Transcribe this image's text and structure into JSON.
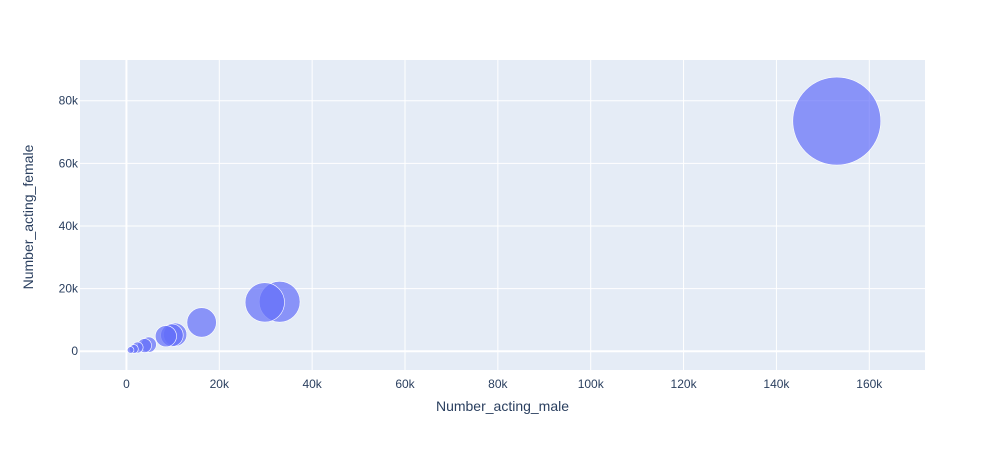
{
  "chart_data": {
    "type": "scatter",
    "subtype": "bubble",
    "xlabel": "Number_acting_male",
    "ylabel": "Number_acting_female",
    "xlim": [
      -10000,
      172000
    ],
    "ylim": [
      -6000,
      93000
    ],
    "x_ticks": [
      0,
      20000,
      40000,
      60000,
      80000,
      100000,
      120000,
      140000,
      160000
    ],
    "x_tick_labels": [
      "0",
      "20k",
      "40k",
      "60k",
      "80k",
      "100k",
      "120k",
      "140k",
      "160k"
    ],
    "y_ticks": [
      0,
      20000,
      40000,
      60000,
      80000
    ],
    "y_tick_labels": [
      "0",
      "20k",
      "40k",
      "60k",
      "80k"
    ],
    "grid": true,
    "legend": "none",
    "colors": {
      "marker": "#636efa",
      "plot_bg": "#e5ecf6",
      "grid": "#ffffff",
      "text": "#2a3f5f"
    },
    "points": [
      {
        "x": 153000,
        "y": 73500,
        "size": 226500
      },
      {
        "x": 33000,
        "y": 15800,
        "size": 48800
      },
      {
        "x": 29800,
        "y": 15600,
        "size": 45400
      },
      {
        "x": 16200,
        "y": 9200,
        "size": 25400
      },
      {
        "x": 10500,
        "y": 5300,
        "size": 15800
      },
      {
        "x": 9800,
        "y": 5100,
        "size": 14900
      },
      {
        "x": 8500,
        "y": 4800,
        "size": 13300
      },
      {
        "x": 4800,
        "y": 2100,
        "size": 6900
      },
      {
        "x": 3900,
        "y": 1800,
        "size": 5700
      },
      {
        "x": 2400,
        "y": 1200,
        "size": 3600
      },
      {
        "x": 1600,
        "y": 700,
        "size": 2300
      },
      {
        "x": 900,
        "y": 400,
        "size": 1300
      }
    ]
  }
}
